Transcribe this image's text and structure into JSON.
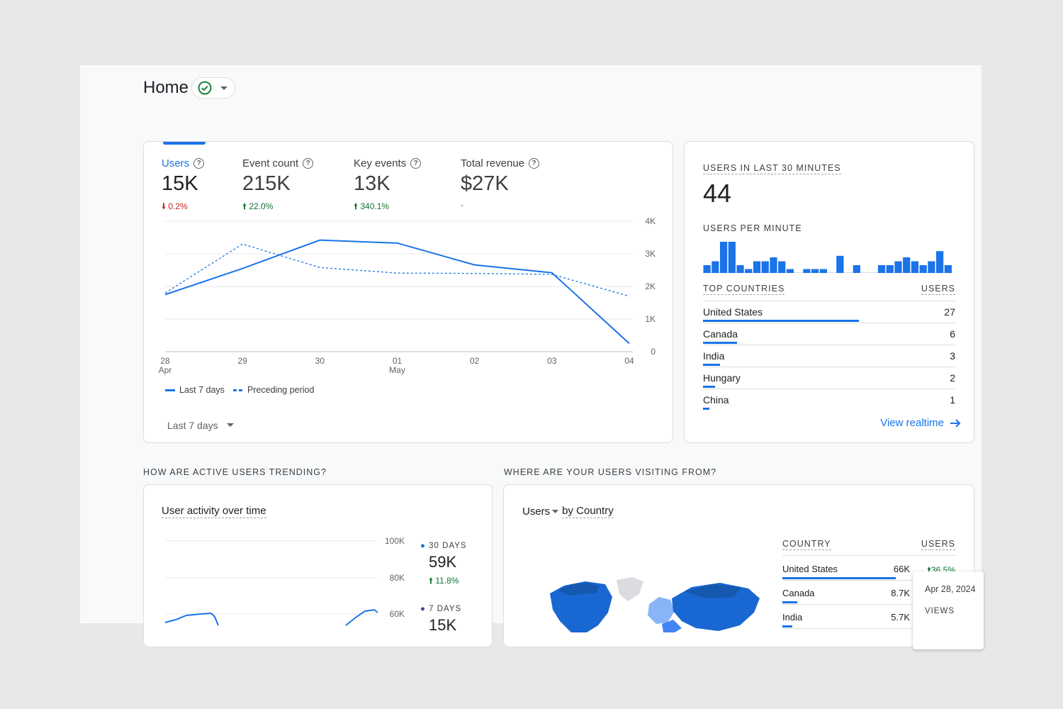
{
  "header": {
    "title": "Home"
  },
  "metrics": [
    {
      "label": "Users",
      "value": "15K",
      "change": "0.2%",
      "direction": "down"
    },
    {
      "label": "Event count",
      "value": "215K",
      "change": "22.0%",
      "direction": "up"
    },
    {
      "label": "Key events",
      "value": "13K",
      "change": "340.1%",
      "direction": "up"
    },
    {
      "label": "Total revenue",
      "value": "$27K",
      "change": "-",
      "direction": "neutral"
    }
  ],
  "chart_data": [
    {
      "type": "line",
      "x": [
        "28 Apr",
        "29",
        "30",
        "01 May",
        "02",
        "03",
        "04"
      ],
      "x_tick_labels": [
        [
          "28",
          "Apr"
        ],
        [
          "29",
          ""
        ],
        [
          "30",
          ""
        ],
        [
          "01",
          "May"
        ],
        [
          "02",
          ""
        ],
        [
          "03",
          ""
        ],
        [
          "04",
          ""
        ]
      ],
      "y_ticks": [
        "0",
        "1K",
        "2K",
        "3K",
        "4K"
      ],
      "ylim": [
        0,
        4000
      ],
      "grid": true,
      "series": [
        {
          "name": "Last 7 days",
          "style": "solid",
          "values": [
            1750,
            2550,
            3420,
            3330,
            2660,
            2420,
            250
          ]
        },
        {
          "name": "Preceding period",
          "style": "dashed",
          "values": [
            1800,
            3300,
            2580,
            2410,
            2400,
            2370,
            1700
          ]
        }
      ]
    },
    {
      "type": "bar",
      "title": "USERS PER MINUTE",
      "values": [
        1,
        1.5,
        4,
        4,
        1,
        0.5,
        1.5,
        1.5,
        2,
        1.5,
        0.5,
        0,
        0.5,
        0.5,
        0.5,
        0,
        2.2,
        0,
        1,
        0,
        0,
        1,
        1,
        1.5,
        2,
        1.5,
        1,
        1.5,
        2.8,
        1
      ],
      "grid": false
    },
    {
      "type": "line",
      "title": "User activity over time",
      "y_ticks": [
        "100K",
        "80K",
        "60K"
      ],
      "series": [
        {
          "name": "30 DAYS",
          "value": "59K",
          "change": "11.8%"
        },
        {
          "name": "7 DAYS",
          "value": "15K"
        }
      ]
    }
  ],
  "main_chart": {
    "legend": [
      {
        "label": "Last 7 days"
      },
      {
        "label": "Preceding period"
      }
    ],
    "date_range": "Last 7 days"
  },
  "realtime": {
    "title": "USERS IN LAST 30 MINUTES",
    "value": "44",
    "per_minute_label": "USERS PER MINUTE",
    "countries_header": "TOP COUNTRIES",
    "users_header": "USERS",
    "countries": [
      {
        "name": "United States",
        "value": "27",
        "fraction": 1.0
      },
      {
        "name": "Canada",
        "value": "6",
        "fraction": 0.22
      },
      {
        "name": "India",
        "value": "3",
        "fraction": 0.11
      },
      {
        "name": "Hungary",
        "value": "2",
        "fraction": 0.075
      },
      {
        "name": "China",
        "value": "1",
        "fraction": 0.04
      }
    ],
    "link": "View realtime"
  },
  "sections": {
    "trending": "HOW ARE ACTIVE USERS TRENDING?",
    "visiting": "WHERE ARE YOUR USERS VISITING FROM?"
  },
  "activity": {
    "title": "User activity over time",
    "y_ticks": [
      "100K",
      "80K",
      "60K"
    ],
    "legend": [
      {
        "label": "30 DAYS",
        "value": "59K",
        "change": "11.8%",
        "color": "#1a73e8"
      },
      {
        "label": "7 DAYS",
        "value": "15K",
        "color": "#5e35b1"
      }
    ]
  },
  "geo": {
    "metric": "Users",
    "dimension": "by Country",
    "col_country": "COUNTRY",
    "col_users": "USERS",
    "rows": [
      {
        "name": "United States",
        "value": "66K",
        "change": "36.5%",
        "fraction": 1.0
      },
      {
        "name": "Canada",
        "value": "8.7K",
        "fraction": 0.13
      },
      {
        "name": "India",
        "value": "5.7K",
        "fraction": 0.09
      }
    ],
    "tooltip": {
      "date": "Apr 28, 2024",
      "label": "VIEWS"
    }
  },
  "colors": {
    "accent": "#1a73e8",
    "positive": "#137333",
    "negative": "#c5221f",
    "seven_day": "#5e35b1"
  }
}
